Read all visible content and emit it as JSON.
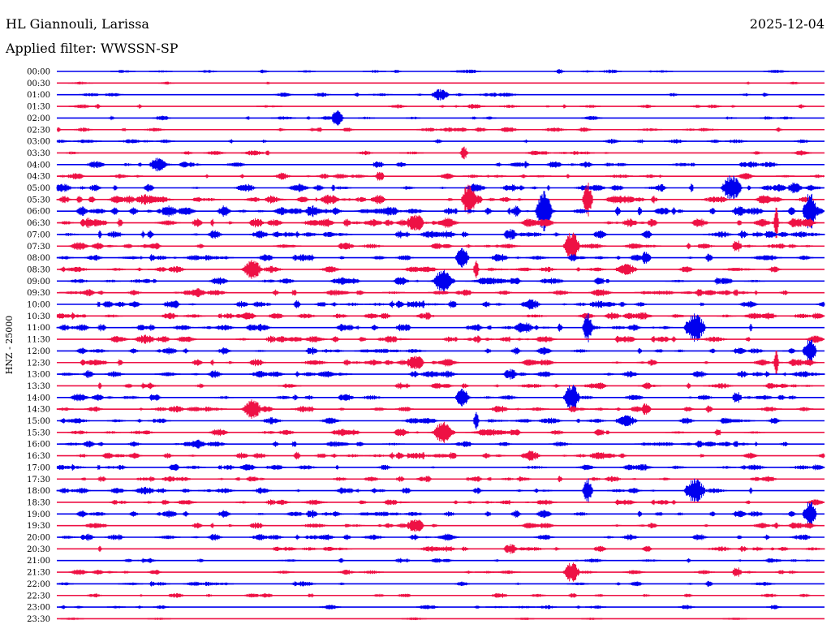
{
  "header": {
    "station": "HL Giannouli, Larissa",
    "date": "2025-12-04",
    "filter": "Applied filter: WWSSN-SP"
  },
  "side_label": "HNZ - 25000",
  "colors": {
    "blue": "#0000ee",
    "red": "#ee1144"
  },
  "chart_data": {
    "type": "line",
    "rows": [
      "00:00",
      "00:30",
      "01:00",
      "01:30",
      "02:00",
      "02:30",
      "03:00",
      "03:30",
      "04:00",
      "04:30",
      "05:00",
      "05:30",
      "06:00",
      "06:30",
      "07:00",
      "07:30",
      "08:00",
      "08:30",
      "09:00",
      "09:30",
      "10:00",
      "10:30",
      "11:00",
      "11:30",
      "12:00",
      "12:30",
      "13:00",
      "13:30",
      "14:00",
      "14:30",
      "15:00",
      "15:30",
      "16:00",
      "16:30",
      "17:00",
      "17:30",
      "18:00",
      "18:30",
      "19:00",
      "19:30",
      "20:00",
      "20:30",
      "21:00",
      "21:30",
      "22:00",
      "22:30",
      "23:00",
      "23:30"
    ],
    "row_colors": [
      "blue",
      "red"
    ],
    "activity": [
      0.25,
      0.1,
      0.3,
      0.3,
      0.3,
      0.35,
      0.3,
      0.3,
      0.55,
      0.55,
      0.7,
      0.85,
      1.0,
      0.85,
      0.7,
      0.6,
      0.65,
      0.55,
      0.6,
      0.6,
      0.65,
      0.65,
      0.7,
      0.7,
      0.55,
      0.6,
      0.6,
      0.55,
      0.55,
      0.55,
      0.55,
      0.55,
      0.55,
      0.6,
      0.55,
      0.5,
      0.55,
      0.5,
      0.6,
      0.5,
      0.5,
      0.45,
      0.35,
      0.35,
      0.4,
      0.3,
      0.3,
      0.1
    ]
  }
}
